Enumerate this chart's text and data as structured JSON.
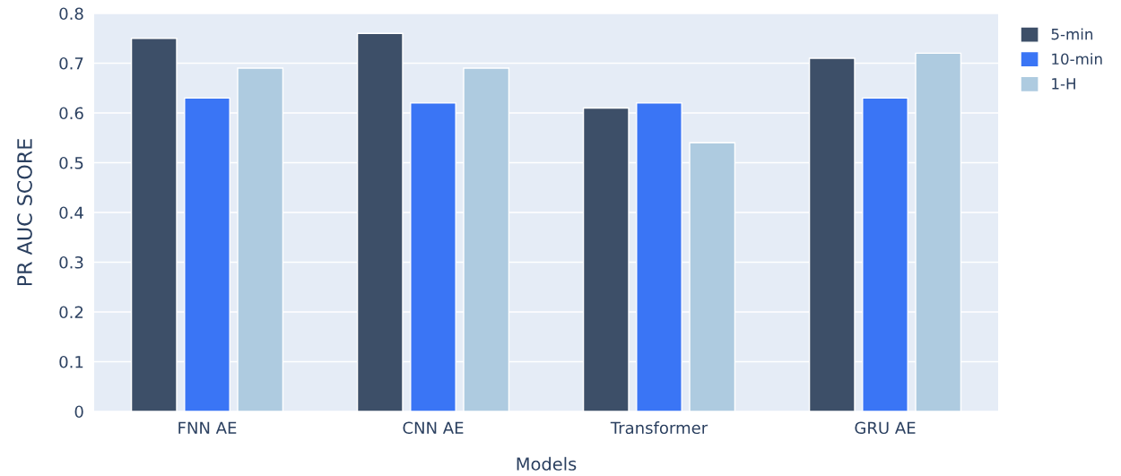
{
  "chart_data": {
    "type": "bar",
    "xlabel": "Models",
    "ylabel": "PR AUC SCORE",
    "categories": [
      "FNN AE",
      "CNN AE",
      "Transformer",
      "GRU AE"
    ],
    "series": [
      {
        "name": "5-min",
        "color": "#3d4f68",
        "values": [
          0.75,
          0.76,
          0.61,
          0.71
        ]
      },
      {
        "name": "10-min",
        "color": "#3a75f5",
        "values": [
          0.63,
          0.62,
          0.62,
          0.63
        ]
      },
      {
        "name": "1-H",
        "color": "#aecbe0",
        "values": [
          0.69,
          0.69,
          0.54,
          0.72
        ]
      }
    ],
    "ylim": [
      0,
      0.8
    ],
    "yticks": [
      0,
      0.1,
      0.2,
      0.3,
      0.4,
      0.5,
      0.6,
      0.7,
      0.8
    ],
    "grid": "y",
    "legend": "top right"
  }
}
